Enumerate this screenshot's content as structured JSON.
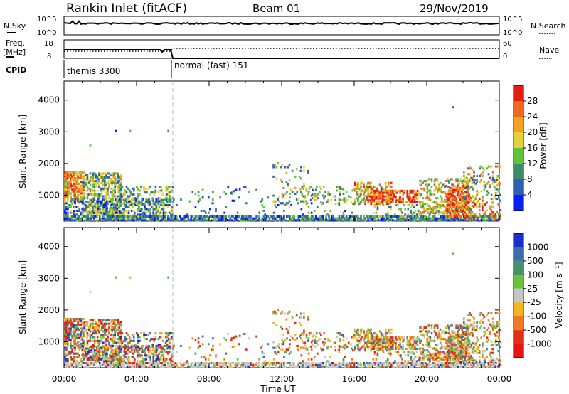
{
  "header": {
    "station": "Rankin Inlet (fitACF)",
    "beam": "Beam 01",
    "date": "29/Nov/2019"
  },
  "strip_sky": {
    "left_label": "N.Sky",
    "right_label": "N.Search",
    "left_ticks": [
      "10^5",
      "10^0"
    ],
    "right_ticks": [
      "10^5",
      "10^0"
    ]
  },
  "strip_freq": {
    "left_label_line1": "Freq.",
    "left_label_line2": "[MHz]",
    "right_label": "Nave",
    "left_ticks": [
      "18",
      "8"
    ],
    "right_ticks": [
      "60",
      "0"
    ]
  },
  "cpid": {
    "label": "CPID",
    "modes": [
      {
        "name": "themis 3300",
        "start_hour": 0
      },
      {
        "name": "normal (fast) 151",
        "start_hour": 6
      }
    ]
  },
  "chart_data": [
    {
      "type": "heatmap",
      "quantity": "Power",
      "ylabel": "Slant Range [km]",
      "ylim": [
        180,
        4600
      ],
      "yticks": [
        1000,
        2000,
        3000,
        4000
      ],
      "xlabel": "Time UT",
      "xlim_hours": [
        0,
        24
      ],
      "colorbar_label": "Power [dB]",
      "colorbar_ticks": [
        "4",
        "8",
        "12",
        "16",
        "20",
        "24",
        "28"
      ],
      "colors": [
        "#0b1cf5",
        "#2e5fb0",
        "#3f8a6a",
        "#5fc23b",
        "#e3d23a",
        "#f6a21f",
        "#ef6a1e",
        "#e61b12"
      ]
    },
    {
      "type": "heatmap",
      "quantity": "Velocity",
      "ylabel": "Slant Range [km]",
      "ylim": [
        180,
        4600
      ],
      "yticks": [
        1000,
        2000,
        3000,
        4000
      ],
      "xlabel": "Time UT",
      "xlim_hours": [
        0,
        24
      ],
      "colorbar_label": "Velocity [m s⁻¹]",
      "colorbar_ticks": [
        "1000",
        "500",
        "100",
        "25",
        "-25",
        "-100",
        "-500",
        "-1000"
      ],
      "colors": [
        "#1c30c8",
        "#3d6ca8",
        "#46936a",
        "#6cc23e",
        "#c6c6c6",
        "#f3b51f",
        "#ef7a1f",
        "#e23015",
        "#e61313"
      ]
    }
  ],
  "x_axis": {
    "label": "Time UT",
    "ticks": [
      "00:00",
      "04:00",
      "08:00",
      "12:00",
      "16:00",
      "20:00",
      "00:00"
    ]
  }
}
